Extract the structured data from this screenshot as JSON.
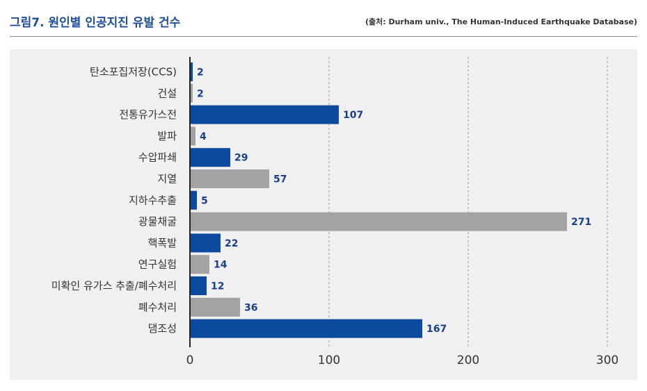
{
  "header": {
    "title": "그림7. 원인별 인공지진 유발 건수",
    "source": "(출처: Durham univ., The Human-Induced Earthquake Database)"
  },
  "colors": {
    "primary": "#0b4a9c",
    "secondary": "#a3a3a6",
    "label": "#1a3f8a",
    "background": "#f0f0f0"
  },
  "chart_data": {
    "type": "bar",
    "orientation": "horizontal",
    "title": "그림7. 원인별 인공지진 유발 건수",
    "xlabel": "",
    "ylabel": "",
    "xlim": [
      0,
      300
    ],
    "xticks": [
      0,
      100,
      200,
      300
    ],
    "grid": "vertical dashed",
    "legend": "none",
    "categories": [
      "탄소포집저장(CCS)",
      "건설",
      "전통유가스전",
      "발파",
      "수압파쇄",
      "지열",
      "지하수추출",
      "광물채굴",
      "핵폭발",
      "연구실험",
      "미확인 유가스 추출/폐수처리",
      "폐수처리",
      "댐조성"
    ],
    "values": [
      2,
      2,
      107,
      4,
      29,
      57,
      5,
      271,
      22,
      14,
      12,
      36,
      167
    ],
    "bar_colors": [
      "#0b4a9c",
      "#a3a3a6",
      "#0b4a9c",
      "#a3a3a6",
      "#0b4a9c",
      "#a3a3a6",
      "#0b4a9c",
      "#a3a3a6",
      "#0b4a9c",
      "#a3a3a6",
      "#0b4a9c",
      "#a3a3a6",
      "#0b4a9c"
    ]
  }
}
